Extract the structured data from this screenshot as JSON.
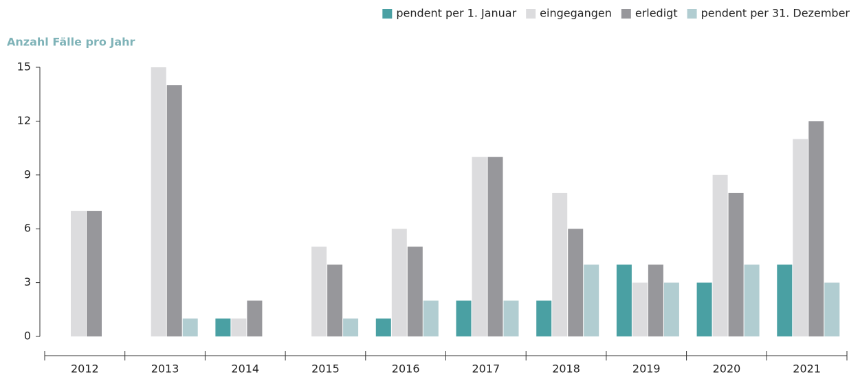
{
  "chart_data": {
    "type": "bar",
    "title": "Anzahl Fälle pro Jahr",
    "categories": [
      "2012",
      "2013",
      "2014",
      "2015",
      "2016",
      "2017",
      "2018",
      "2019",
      "2020",
      "2021"
    ],
    "series": [
      {
        "name": "pendent per 1. Januar",
        "color": "#4aa0a3",
        "values": [
          0,
          0,
          1,
          0,
          1,
          2,
          2,
          4,
          3,
          4
        ]
      },
      {
        "name": "eingegangen",
        "color": "#dcdcde",
        "values": [
          7,
          15,
          1,
          5,
          6,
          10,
          8,
          3,
          9,
          11
        ]
      },
      {
        "name": "erledigt",
        "color": "#97979b",
        "values": [
          7,
          14,
          2,
          4,
          5,
          10,
          6,
          4,
          8,
          12
        ]
      },
      {
        "name": "pendent per 31. Dezember",
        "color": "#b1cdd1",
        "values": [
          0,
          1,
          0,
          1,
          2,
          2,
          4,
          3,
          4,
          3
        ]
      }
    ],
    "ylim": [
      0,
      15
    ],
    "yticks": [
      0,
      3,
      6,
      9,
      12,
      15
    ],
    "grid": false,
    "legend": "top-right"
  }
}
